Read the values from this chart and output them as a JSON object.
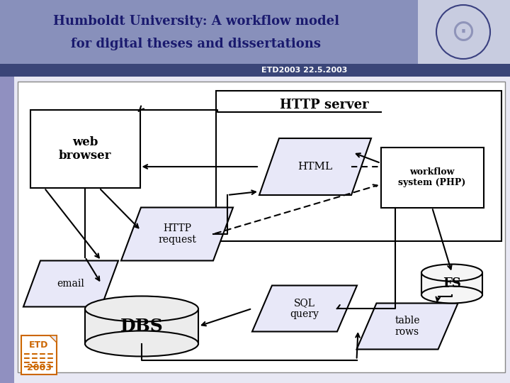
{
  "title_line1": "Humboldt University: A workflow model",
  "title_line2": "for digital theses and dissertations",
  "subtitle": "ETD2003 22.5.2003",
  "header_bg": "#8890bb",
  "header_text_color": "#1a1a6e",
  "subtitle_bg": "#3a4578",
  "logo_bg": "#c8cce0",
  "body_bg": "#e8e8f4",
  "strip_color": "#9090c0",
  "para_fill": "#e8e8f8",
  "white": "#ffffff",
  "etd_orange": "#cc6600",
  "lw": 1.5
}
